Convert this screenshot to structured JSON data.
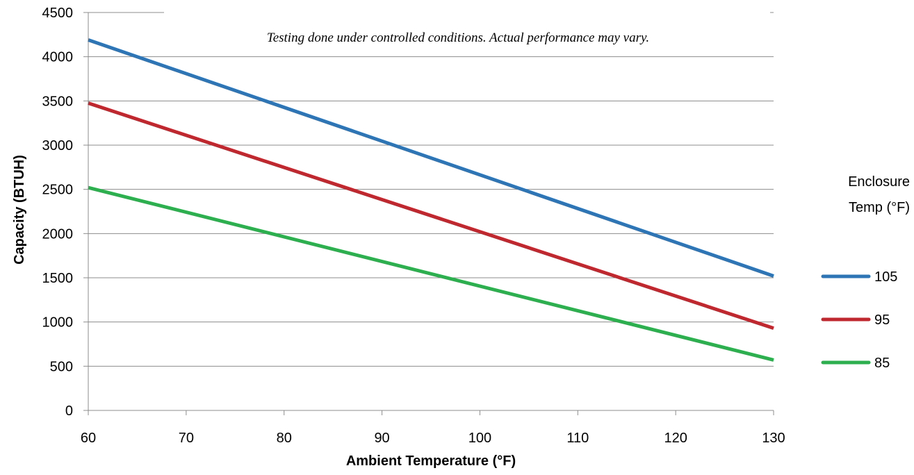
{
  "chart_data": {
    "type": "line",
    "title": "",
    "xlabel": "Ambient Temperature (°F)",
    "ylabel": "Capacity (BTUH)",
    "xlim": [
      60,
      130
    ],
    "ylim": [
      0,
      4500
    ],
    "x_ticks": [
      "60",
      "70",
      "80",
      "90",
      "100",
      "110",
      "120",
      "130"
    ],
    "y_ticks": [
      "0",
      "500",
      "1000",
      "1500",
      "2000",
      "2500",
      "3000",
      "3500",
      "4000",
      "4500"
    ],
    "grid": true,
    "annotation": "Testing done under controlled conditions. Actual performance may vary.",
    "legend": {
      "title_line1": "Enclosure",
      "title_line2": "Temp (°F)",
      "position": "right"
    },
    "series": [
      {
        "name": "105",
        "color": "#2E75B6",
        "x": [
          60,
          130
        ],
        "values": [
          4190,
          1520
        ]
      },
      {
        "name": "95",
        "color": "#C0282F",
        "x": [
          60,
          130
        ],
        "values": [
          3475,
          930
        ]
      },
      {
        "name": "85",
        "color": "#2EAF4F",
        "x": [
          60,
          130
        ],
        "values": [
          2520,
          570
        ]
      }
    ]
  }
}
